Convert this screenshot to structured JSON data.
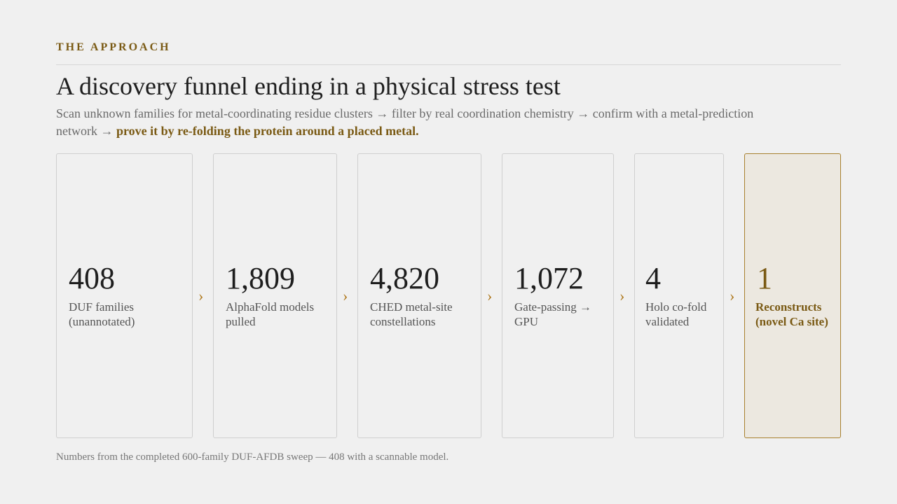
{
  "header": {
    "kicker": "THE APPROACH",
    "title": "A discovery funnel ending in a physical stress test",
    "subtitle": "Scan unknown families for metal-coordinating residue clusters → filter by real coordination chemistry → confirm with a metal-prediction network → ",
    "subtitle_emphasis": "prove it by re-folding the protein around a placed metal."
  },
  "funnel": [
    {
      "number": "408",
      "label": "DUF families (unannotated)"
    },
    {
      "number": "1,809",
      "label": "AlphaFold models pulled"
    },
    {
      "number": "4,820",
      "label": "CHED metal-site constellations"
    },
    {
      "number": "1,072",
      "label": "Gate-passing → GPU"
    },
    {
      "number": "4",
      "label": "Holo co-fold validated"
    },
    {
      "number": "1",
      "label": "Reconstructs (novel Ca site)"
    }
  ],
  "footnote": "Numbers from the completed 600-family DUF-AFDB sweep — 408 with a scannable model."
}
